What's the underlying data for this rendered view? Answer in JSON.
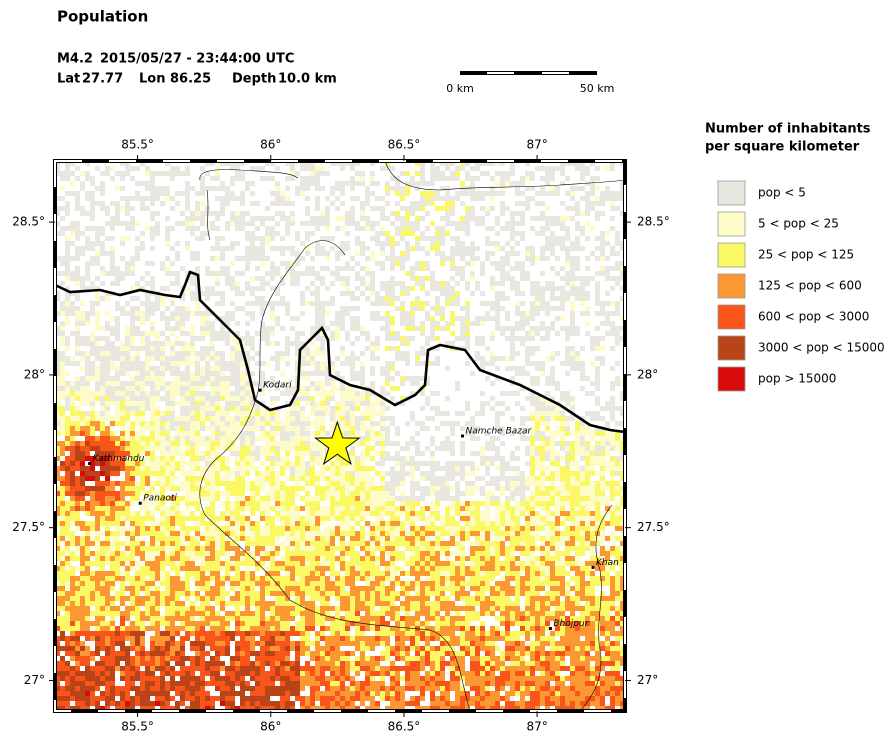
{
  "title": "Population",
  "event": {
    "magnitude": "M4.2",
    "time": "2015/05/27 - 23:44:00 UTC",
    "lat_label": "Lat",
    "lat": 27.77,
    "lon_label": "Lon",
    "lon": 86.25,
    "depth_label": "Depth",
    "depth": "10.0 km"
  },
  "scale_bar": {
    "start_label": "0 km",
    "end_label": "50 km"
  },
  "map": {
    "lon_range": [
      85.19,
      87.33
    ],
    "lat_range": [
      26.9,
      28.7
    ],
    "lon_ticks": [
      {
        "value": 85.5,
        "label": "85.5°"
      },
      {
        "value": 86,
        "label": "86°"
      },
      {
        "value": 86.5,
        "label": "86.5°"
      },
      {
        "value": 87,
        "label": "87°"
      }
    ],
    "lat_ticks": [
      {
        "value": 28.5,
        "label": "28.5°"
      },
      {
        "value": 28,
        "label": "28°"
      },
      {
        "value": 27.5,
        "label": "27.5°"
      },
      {
        "value": 27,
        "label": "27°"
      }
    ],
    "places": [
      {
        "name": "Kodari",
        "lon": 85.96,
        "lat": 27.95
      },
      {
        "name": "Kathmandu",
        "lon": 85.32,
        "lat": 27.71
      },
      {
        "name": "Panaoti",
        "lon": 85.51,
        "lat": 27.58
      },
      {
        "name": "Namche Bazar",
        "lon": 86.72,
        "lat": 27.8
      },
      {
        "name": "Khan",
        "lon": 87.21,
        "lat": 27.37
      },
      {
        "name": "Bhojpur",
        "lon": 87.05,
        "lat": 27.17
      }
    ]
  },
  "legend": {
    "title": [
      "Number of inhabitants",
      "per square kilometer"
    ],
    "items": [
      {
        "label": "pop < 5",
        "color": "#e8e8e0"
      },
      {
        "label": "5 < pop < 25",
        "color": "#fdfbc8"
      },
      {
        "label": "25 < pop < 125",
        "color": "#fbf866"
      },
      {
        "label": "125 < pop < 600",
        "color": "#fb9834"
      },
      {
        "label": "600 < pop < 3000",
        "color": "#f9541a"
      },
      {
        "label": "3000 < pop < 15000",
        "color": "#b84418"
      },
      {
        "label": "pop > 15000",
        "color": "#d80c0c"
      }
    ]
  }
}
